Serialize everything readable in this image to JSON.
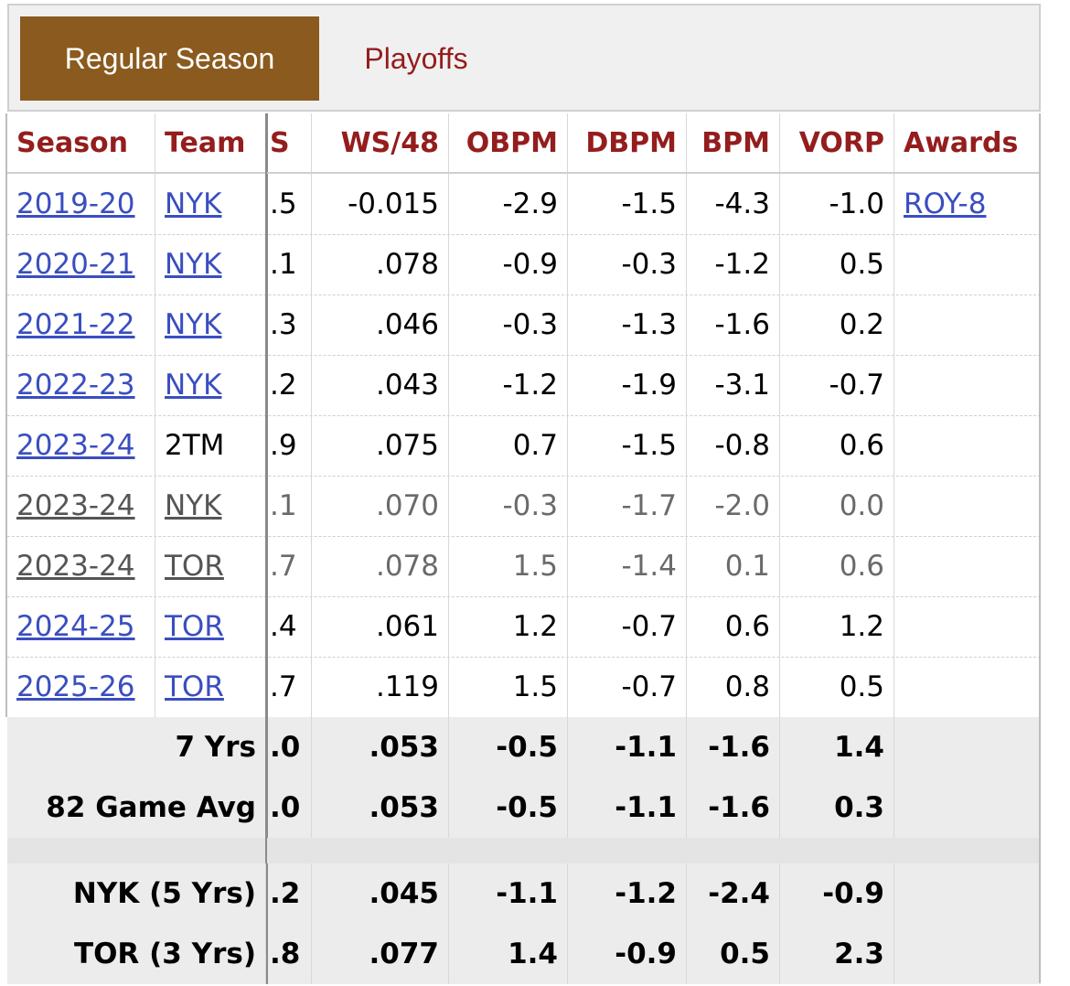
{
  "tabs": {
    "active": "Regular Season",
    "inactive": "Playoffs"
  },
  "colors": {
    "accent": "#8a5a1e",
    "header_text": "#941d1d",
    "link": "#3a4ec0"
  },
  "headers": {
    "season": "Season",
    "team": "Team",
    "ws": "S",
    "ws48": "WS/48",
    "obpm": "OBPM",
    "dbpm": "DBPM",
    "bpm": "BPM",
    "vorp": "VORP",
    "awards": "Awards"
  },
  "rows": [
    {
      "season": "2019-20",
      "team": "NYK",
      "ws": ".5",
      "ws48": "-0.015",
      "obpm": "-2.9",
      "dbpm": "-1.5",
      "bpm": "-4.3",
      "vorp": "-1.0",
      "awards": "ROY-8"
    },
    {
      "season": "2020-21",
      "team": "NYK",
      "ws": ".1",
      "ws48": ".078",
      "obpm": "-0.9",
      "dbpm": "-0.3",
      "bpm": "-1.2",
      "vorp": "0.5",
      "awards": ""
    },
    {
      "season": "2021-22",
      "team": "NYK",
      "ws": ".3",
      "ws48": ".046",
      "obpm": "-0.3",
      "dbpm": "-1.3",
      "bpm": "-1.6",
      "vorp": "0.2",
      "awards": ""
    },
    {
      "season": "2022-23",
      "team": "NYK",
      "ws": ".2",
      "ws48": ".043",
      "obpm": "-1.2",
      "dbpm": "-1.9",
      "bpm": "-3.1",
      "vorp": "-0.7",
      "awards": ""
    },
    {
      "season": "2023-24",
      "team": "2TM",
      "ws": ".9",
      "ws48": ".075",
      "obpm": "0.7",
      "dbpm": "-1.5",
      "bpm": "-0.8",
      "vorp": "0.6",
      "awards": ""
    },
    {
      "season": "2023-24",
      "team": "NYK",
      "ws": ".1",
      "ws48": ".070",
      "obpm": "-0.3",
      "dbpm": "-1.7",
      "bpm": "-2.0",
      "vorp": "0.0",
      "awards": ""
    },
    {
      "season": "2023-24",
      "team": "TOR",
      "ws": ".7",
      "ws48": ".078",
      "obpm": "1.5",
      "dbpm": "-1.4",
      "bpm": "0.1",
      "vorp": "0.6",
      "awards": ""
    },
    {
      "season": "2024-25",
      "team": "TOR",
      "ws": ".4",
      "ws48": ".061",
      "obpm": "1.2",
      "dbpm": "-0.7",
      "bpm": "0.6",
      "vorp": "1.2",
      "awards": ""
    },
    {
      "season": "2025-26",
      "team": "TOR",
      "ws": ".7",
      "ws48": ".119",
      "obpm": "1.5",
      "dbpm": "-0.7",
      "bpm": "0.8",
      "vorp": "0.5",
      "awards": ""
    }
  ],
  "summary": [
    {
      "label": "7 Yrs",
      "ws": ".0",
      "ws48": ".053",
      "obpm": "-0.5",
      "dbpm": "-1.1",
      "bpm": "-1.6",
      "vorp": "1.4"
    },
    {
      "label": "82 Game Avg",
      "ws": ".0",
      "ws48": ".053",
      "obpm": "-0.5",
      "dbpm": "-1.1",
      "bpm": "-1.6",
      "vorp": "0.3"
    }
  ],
  "team_summary": [
    {
      "label": "NYK (5 Yrs)",
      "ws": ".2",
      "ws48": ".045",
      "obpm": "-1.1",
      "dbpm": "-1.2",
      "bpm": "-2.4",
      "vorp": "-0.9"
    },
    {
      "label": "TOR (3 Yrs)",
      "ws": ".8",
      "ws48": ".077",
      "obpm": "1.4",
      "dbpm": "-0.9",
      "bpm": "0.5",
      "vorp": "2.3"
    }
  ]
}
